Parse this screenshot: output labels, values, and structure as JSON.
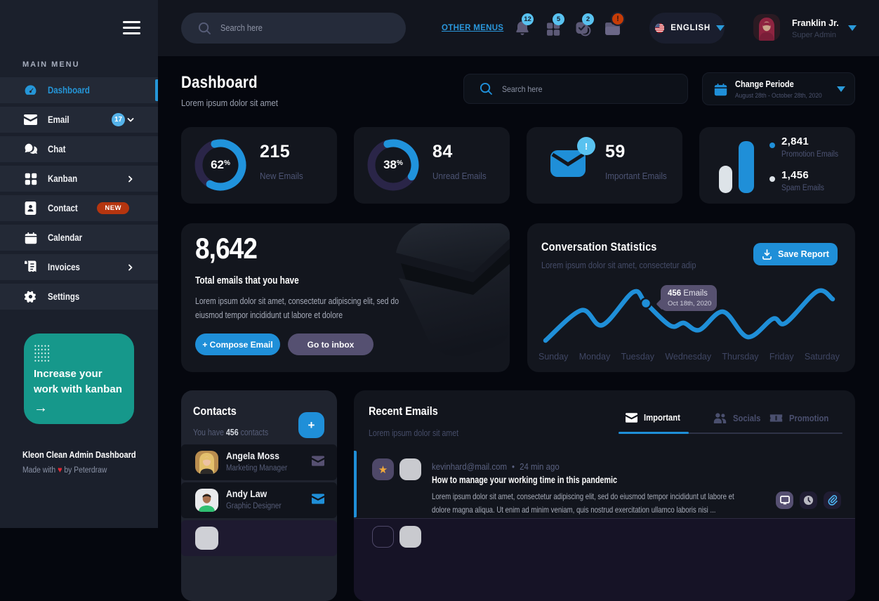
{
  "colors": {
    "accent_blue": "#1f8fd8",
    "light_blue": "#55b3ea",
    "teal": "#16988b",
    "orange_badge": "#b5350f",
    "star_orange": "#f2a93b",
    "purple_button": "#555071"
  },
  "sidebar": {
    "main_menu_label": "MAIN MENU",
    "items": [
      {
        "label": "Dashboard",
        "icon": "speedometer-icon",
        "active": true
      },
      {
        "label": "Email",
        "icon": "envelope-icon",
        "badge": "17",
        "chevron": "down"
      },
      {
        "label": "Chat",
        "icon": "chat-icon"
      },
      {
        "label": "Kanban",
        "icon": "kanban-icon",
        "chevron": "right"
      },
      {
        "label": "Contact",
        "icon": "contact-book-icon",
        "tag": "NEW"
      },
      {
        "label": "Calendar",
        "icon": "calendar-icon"
      },
      {
        "label": "Invoices",
        "icon": "invoice-icon",
        "chevron": "right"
      },
      {
        "label": "Settings",
        "icon": "gear-icon"
      }
    ],
    "promo": {
      "line1": "Increase your",
      "line2": "work with kanban",
      "arrow": "→"
    },
    "brand": "Kleon Clean Admin Dashboard",
    "made_with": "Made with",
    "heart": "♥",
    "made_by": "by Peterdraw"
  },
  "topbar": {
    "search_placeholder": "Search here",
    "other_menus_label": "OTHER MENUS",
    "notifications": [
      {
        "icon": "bell-icon",
        "count": "12"
      },
      {
        "icon": "gift-icon",
        "count": "5"
      },
      {
        "icon": "check-square-icon",
        "count": "2"
      },
      {
        "icon": "folder-icon",
        "count": "!"
      }
    ],
    "language": {
      "label": "ENGLISH",
      "flag": "us-flag-icon"
    },
    "user": {
      "name": "Franklin Jr.",
      "role": "Super Admin"
    }
  },
  "page": {
    "title": "Dashboard",
    "subtitle": "Lorem ipsum  dolor sit amet",
    "search_placeholder": "Search here",
    "periode": {
      "title": "Change Periode",
      "range": "August 28th - October 28th, 2020"
    }
  },
  "stats": [
    {
      "percent": 62,
      "value": "215",
      "label": "New Emails"
    },
    {
      "percent": 38,
      "value": "84",
      "label": "Unread Emails"
    },
    {
      "value": "59",
      "label": "Important Emails",
      "badge": "!"
    },
    {
      "legend": [
        {
          "value": "2,841",
          "label": "Promotion Emails",
          "color": "#1f8fd8"
        },
        {
          "value": "1,456",
          "label": "Spam Emails",
          "color": "#dde3e8"
        }
      ]
    }
  ],
  "total_emails": {
    "value": "8,642",
    "title": "Total emails that you have",
    "description": "Lorem ipsum dolor sit amet, consectetur adipiscing elit, sed do eiusmod tempor incididunt ut labore et dolore",
    "compose_label": "+ Compose Email",
    "inbox_label": "Go to inbox"
  },
  "conversation": {
    "title": "Conversation Statistics",
    "subtitle": "Lorem ipsum dolor sit amet, consectetur adip",
    "save_label": "Save Report",
    "tooltip": {
      "value": "456",
      "unit": "Emails",
      "date": "Oct 18th, 2020"
    }
  },
  "chart_data": {
    "type": "line",
    "title": "Conversation Statistics",
    "x_labels": [
      "Sunday",
      "Monday",
      "Tuesday",
      "Wednesday",
      "Thursday",
      "Friday",
      "Saturday"
    ],
    "points": [
      [
        14,
        87
      ],
      [
        65,
        44
      ],
      [
        95,
        65
      ],
      [
        139,
        18
      ],
      [
        157,
        34
      ],
      [
        192,
        66
      ],
      [
        211,
        62
      ],
      [
        233,
        72
      ],
      [
        267,
        46
      ],
      [
        302,
        82
      ],
      [
        338,
        56
      ],
      [
        356,
        62
      ],
      [
        401,
        17
      ],
      [
        423,
        28
      ]
    ],
    "marker_index": 4,
    "annotation": {
      "value": "456",
      "unit": "Emails",
      "date": "Oct 18th, 2020"
    },
    "line_color": "#1f8fd8",
    "donuts": [
      {
        "percent": 62
      },
      {
        "percent": 38
      }
    ],
    "bars": {
      "promotion": 2841,
      "spam": 1456
    }
  },
  "contacts": {
    "title": "Contacts",
    "count": "456",
    "subtitle_prefix": "You have ",
    "subtitle_suffix": " contacts",
    "add_label": "+",
    "items": [
      {
        "name": "Angela Moss",
        "role": "Marketing Manager"
      },
      {
        "name": "Andy Law",
        "role": "Graphic Designer"
      }
    ]
  },
  "emails": {
    "title": "Recent Emails",
    "subtitle": "Lorem ipsum dolor sit amet",
    "tabs": [
      {
        "label": "Important",
        "icon": "envelope-icon",
        "active": true
      },
      {
        "label": "Socials",
        "icon": "people-icon"
      },
      {
        "label": "Promotion",
        "icon": "ticket-icon"
      }
    ],
    "items": [
      {
        "from": "kevinhard@mail.com",
        "separator": "•",
        "time": "24 min ago",
        "subject": "How to manage your working time in this pandemic",
        "body": "Lorem ipsum dolor sit amet, consectetur adipiscing elit, sed do eiusmod tempor incididunt ut labore et dolore magna aliqua. Ut enim ad minim veniam, quis nostrud exercitation ullamco laboris nisi ..."
      }
    ]
  }
}
